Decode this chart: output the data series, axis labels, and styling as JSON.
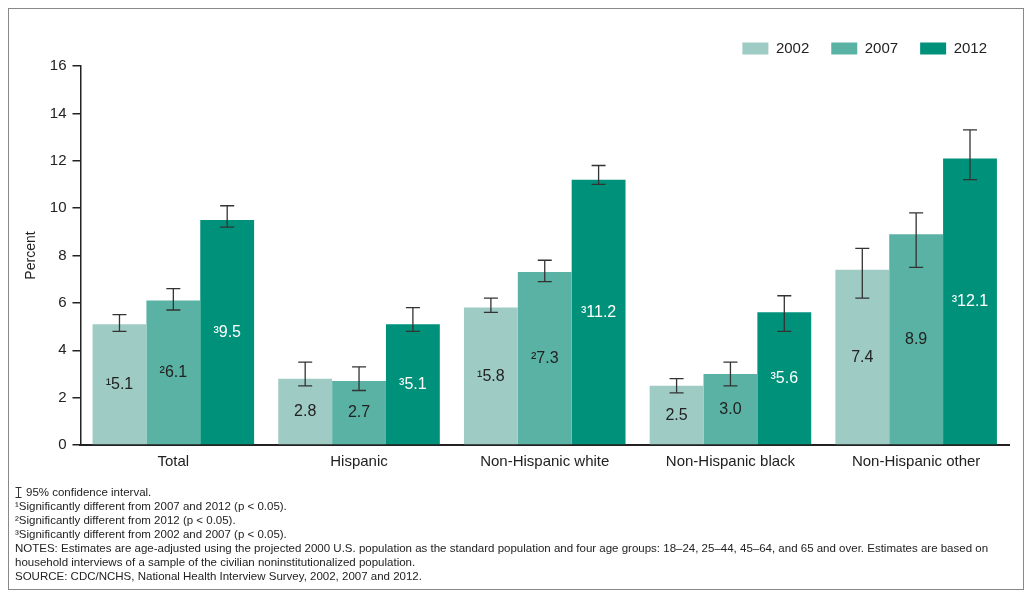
{
  "chart_data": {
    "type": "bar",
    "ylabel": "Percent",
    "categories": [
      "Total",
      "Hispanic",
      "Non-Hispanic white",
      "Non-Hispanic black",
      "Non-Hispanic other"
    ],
    "series": [
      {
        "name": "2002",
        "color": "#9ecbc3",
        "values": [
          5.1,
          2.8,
          5.8,
          2.5,
          7.4
        ],
        "value_labels": [
          "¹5.1",
          "2.8",
          "¹5.8",
          "2.5",
          "7.4"
        ],
        "errors": [
          [
            4.8,
            5.5
          ],
          [
            2.5,
            3.5
          ],
          [
            5.6,
            6.2
          ],
          [
            2.2,
            2.8
          ],
          [
            6.2,
            8.3
          ]
        ]
      },
      {
        "name": "2007",
        "color": "#5ab2a4",
        "values": [
          6.1,
          2.7,
          7.3,
          3.0,
          8.9
        ],
        "value_labels": [
          "²6.1",
          "2.7",
          "²7.3",
          "3.0",
          "8.9"
        ],
        "errors": [
          [
            5.7,
            6.6
          ],
          [
            2.3,
            3.3
          ],
          [
            6.9,
            7.8
          ],
          [
            2.5,
            3.5
          ],
          [
            7.5,
            9.8
          ]
        ]
      },
      {
        "name": "2012",
        "color": "#00917a",
        "values": [
          9.5,
          5.1,
          11.2,
          5.6,
          12.1
        ],
        "value_labels": [
          "³9.5",
          "³5.1",
          "³11.2",
          "³5.6",
          "³12.1"
        ],
        "errors": [
          [
            9.2,
            10.1
          ],
          [
            4.8,
            5.8
          ],
          [
            11.0,
            11.8
          ],
          [
            4.8,
            6.3
          ],
          [
            11.2,
            13.3
          ]
        ]
      }
    ],
    "ylim": [
      0,
      16
    ],
    "yticks": [
      0,
      2,
      4,
      6,
      8,
      10,
      12,
      14,
      16
    ],
    "grid": false,
    "legend": "top right",
    "annotations": [
      "95% confidence interval.",
      "¹Significantly different from 2007 and 2012 (p < 0.05).",
      "²Significantly different from 2012 (p < 0.05).",
      "³Significantly different from 2002 and 2007 (p < 0.05).",
      "NOTES: Estimates are age-adjusted using the projected 2000 U.S. population as the standard population and four age groups: 18–24, 25–44, 45–64, and 65 and over. Estimates are based on household interviews of a sample of the civilian noninstitutionalized population.",
      "SOURCE: CDC/NCHS, National Health Interview Survey, 2002, 2007 and 2012."
    ]
  }
}
